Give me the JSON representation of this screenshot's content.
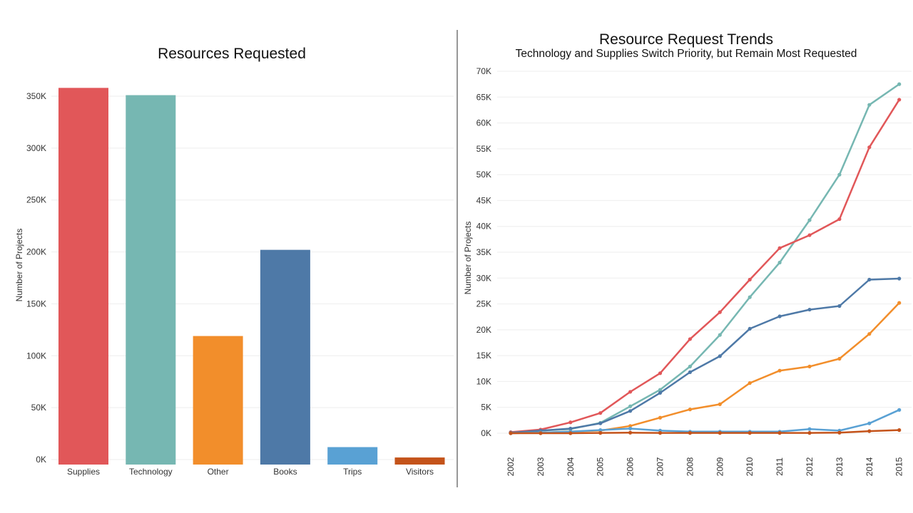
{
  "chart_data": [
    {
      "type": "bar",
      "title": "Resources Requested",
      "xlabel": "",
      "ylabel": "Number of Projects",
      "ylim": [
        0,
        360000
      ],
      "yticks": [
        0,
        50000,
        100000,
        150000,
        200000,
        250000,
        300000,
        350000
      ],
      "ytick_labels": [
        "0K",
        "50K",
        "100K",
        "150K",
        "200K",
        "250K",
        "300K",
        "350K"
      ],
      "grid": true,
      "categories": [
        "Supplies",
        "Technology",
        "Other",
        "Books",
        "Trips",
        "Visitors"
      ],
      "values": [
        358000,
        351000,
        119000,
        202000,
        12000,
        2000
      ],
      "colors": [
        "#e15759",
        "#76b7b2",
        "#f28e2b",
        "#4e79a7",
        "#59a1d4",
        "#c4531a"
      ]
    },
    {
      "type": "line",
      "title": "Resource Request Trends",
      "subtitle": "Technology and Supplies Switch Priority, but Remain Most Requested",
      "xlabel": "",
      "ylabel": "Number of Projects",
      "ylim": [
        0,
        70000
      ],
      "yticks": [
        0,
        5000,
        10000,
        15000,
        20000,
        25000,
        30000,
        35000,
        40000,
        45000,
        50000,
        55000,
        60000,
        65000,
        70000
      ],
      "ytick_labels": [
        "0K",
        "5K",
        "10K",
        "15K",
        "20K",
        "25K",
        "30K",
        "35K",
        "40K",
        "45K",
        "50K",
        "55K",
        "60K",
        "65K",
        "70K"
      ],
      "grid": true,
      "x": [
        "2002",
        "2003",
        "2004",
        "2005",
        "2006",
        "2007",
        "2008",
        "2009",
        "2010",
        "2011",
        "2012",
        "2013",
        "2014",
        "2015"
      ],
      "series": [
        {
          "name": "Technology",
          "color": "#76b7b2",
          "values": [
            100,
            500,
            800,
            2000,
            5200,
            8400,
            12900,
            19000,
            26300,
            33000,
            41200,
            50000,
            63500,
            67500
          ]
        },
        {
          "name": "Supplies",
          "color": "#e15759",
          "values": [
            200,
            700,
            2100,
            3900,
            8000,
            11600,
            18200,
            23400,
            29700,
            35800,
            38300,
            41400,
            55300,
            64500
          ]
        },
        {
          "name": "Books",
          "color": "#4e79a7",
          "values": [
            100,
            500,
            900,
            1900,
            4300,
            7800,
            11800,
            14900,
            20200,
            22600,
            23900,
            24600,
            29700,
            29900
          ]
        },
        {
          "name": "Other",
          "color": "#f28e2b",
          "values": [
            0,
            100,
            300,
            500,
            1400,
            3000,
            4600,
            5600,
            9700,
            12100,
            12900,
            14400,
            19200,
            25200
          ]
        },
        {
          "name": "Trips",
          "color": "#59a1d4",
          "values": [
            0,
            100,
            300,
            600,
            900,
            500,
            300,
            300,
            300,
            300,
            800,
            500,
            1900,
            4500
          ]
        },
        {
          "name": "Visitors",
          "color": "#c4531a",
          "values": [
            0,
            0,
            0,
            50,
            100,
            50,
            50,
            50,
            50,
            50,
            50,
            100,
            400,
            600
          ]
        }
      ]
    }
  ]
}
